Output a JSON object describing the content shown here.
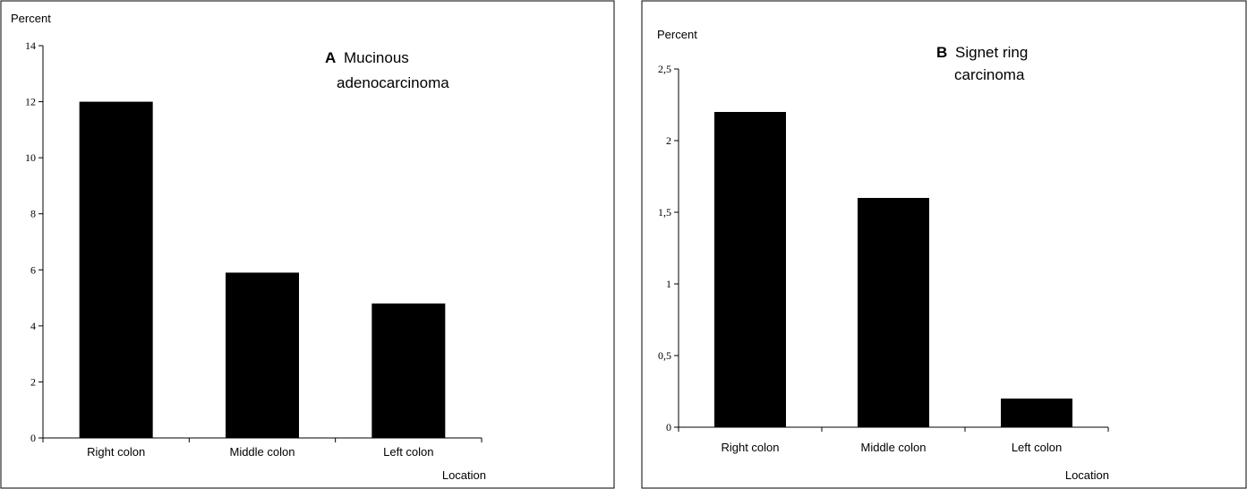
{
  "chart_data": [
    {
      "type": "bar",
      "panel_letter": "A",
      "title_lines": [
        "Mucinous",
        "adenocarcinoma"
      ],
      "ylabel": "Percent",
      "xlabel": "Location",
      "categories": [
        "Right colon",
        "Middle colon",
        "Left colon"
      ],
      "values": [
        12,
        5.9,
        4.8
      ],
      "ylim": [
        0,
        14
      ],
      "yticks": [
        0,
        2,
        4,
        6,
        8,
        10,
        12,
        14
      ],
      "ytick_labels": [
        "0",
        "2",
        "4",
        "6",
        "8",
        "10",
        "12",
        "14"
      ],
      "bar_color": "#000000",
      "grid": false,
      "legend": "none"
    },
    {
      "type": "bar",
      "panel_letter": "B",
      "title_lines": [
        "Signet ring",
        "carcinoma"
      ],
      "ylabel": "Percent",
      "xlabel": "Location",
      "categories": [
        "Right colon",
        "Middle colon",
        "Left colon"
      ],
      "values": [
        2.2,
        1.6,
        0.2
      ],
      "ylim": [
        0,
        2.5
      ],
      "yticks": [
        0,
        0.5,
        1,
        1.5,
        2,
        2.5
      ],
      "ytick_labels": [
        "0",
        "0,5",
        "1",
        "1,5",
        "2",
        "2,5"
      ],
      "bar_color": "#000000",
      "grid": false,
      "legend": "none"
    }
  ]
}
